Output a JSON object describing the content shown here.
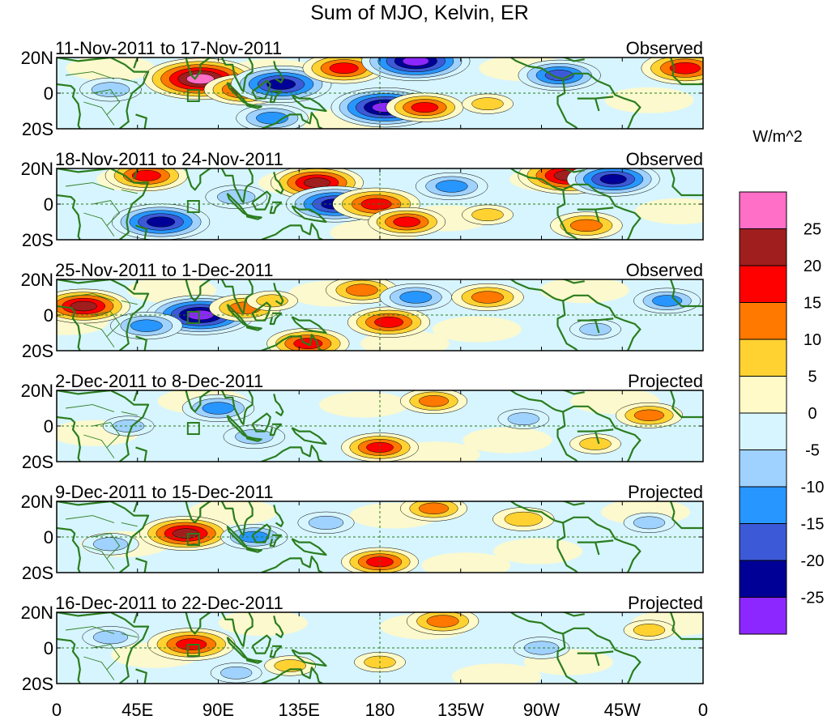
{
  "title": "Sum of MJO, Kelvin, ER",
  "chart_data": {
    "type": "heatmap",
    "title": "Sum of MJO, Kelvin, ER",
    "units": "W/m^2",
    "lat_ticks": [
      "20N",
      "0",
      "20S"
    ],
    "lon_ticks": [
      "0",
      "45E",
      "90E",
      "135E",
      "180",
      "135W",
      "90W",
      "45W",
      "0"
    ],
    "lon_range": [
      0,
      360
    ],
    "lat_range": [
      -20,
      20
    ],
    "colorbar": {
      "labels": [
        "25",
        "20",
        "15",
        "10",
        "5",
        "0",
        "-5",
        "-10",
        "-15",
        "-20",
        "-25"
      ],
      "colors": [
        "#ff6ec7",
        "#a01e1e",
        "#ff0000",
        "#ff7800",
        "#ffd232",
        "#fffac8",
        "#d7f5ff",
        "#a0d2ff",
        "#2896ff",
        "#3c5ad7",
        "#000096",
        "#8c28ff"
      ]
    },
    "panels": [
      {
        "period": "11-Nov-2011 to 17-Nov-2011",
        "status": "Observed",
        "features": [
          {
            "lon": 80,
            "lat": 8,
            "value": 30
          },
          {
            "lon": 105,
            "lat": 2,
            "value": 18
          },
          {
            "lon": 125,
            "lat": 5,
            "value": -25
          },
          {
            "lon": 160,
            "lat": 14,
            "value": 18
          },
          {
            "lon": 200,
            "lat": 18,
            "value": -28
          },
          {
            "lon": 183,
            "lat": -8,
            "value": -28
          },
          {
            "lon": 205,
            "lat": -8,
            "value": 16
          },
          {
            "lon": 280,
            "lat": 10,
            "value": -18
          },
          {
            "lon": 350,
            "lat": 14,
            "value": 20
          },
          {
            "lon": 30,
            "lat": 2,
            "value": -10
          },
          {
            "lon": 120,
            "lat": -14,
            "value": -14
          },
          {
            "lon": 240,
            "lat": -6,
            "value": 6
          }
        ]
      },
      {
        "period": "18-Nov-2011 to 24-Nov-2011",
        "status": "Observed",
        "features": [
          {
            "lon": 50,
            "lat": 16,
            "value": 18
          },
          {
            "lon": 58,
            "lat": -10,
            "value": -24
          },
          {
            "lon": 145,
            "lat": 12,
            "value": 22
          },
          {
            "lon": 155,
            "lat": 0,
            "value": -24
          },
          {
            "lon": 178,
            "lat": 0,
            "value": 20
          },
          {
            "lon": 195,
            "lat": -10,
            "value": 16
          },
          {
            "lon": 220,
            "lat": 10,
            "value": -14
          },
          {
            "lon": 285,
            "lat": 16,
            "value": 25
          },
          {
            "lon": 310,
            "lat": 14,
            "value": -22
          },
          {
            "lon": 295,
            "lat": -12,
            "value": 14
          },
          {
            "lon": 100,
            "lat": 4,
            "value": -10
          },
          {
            "lon": 240,
            "lat": -6,
            "value": 6
          }
        ]
      },
      {
        "period": "25-Nov-2011 to 1-Dec-2011",
        "status": "Observed",
        "features": [
          {
            "lon": 15,
            "lat": 5,
            "value": 22
          },
          {
            "lon": 80,
            "lat": 0,
            "value": -28
          },
          {
            "lon": 105,
            "lat": 4,
            "value": 14
          },
          {
            "lon": 170,
            "lat": 14,
            "value": 14
          },
          {
            "lon": 185,
            "lat": -4,
            "value": 18
          },
          {
            "lon": 140,
            "lat": -16,
            "value": 18
          },
          {
            "lon": 240,
            "lat": 10,
            "value": 14
          },
          {
            "lon": 200,
            "lat": 10,
            "value": -14
          },
          {
            "lon": 340,
            "lat": 8,
            "value": -12
          },
          {
            "lon": 300,
            "lat": -8,
            "value": -6
          },
          {
            "lon": 50,
            "lat": -6,
            "value": -14
          },
          {
            "lon": 120,
            "lat": 8,
            "value": 6
          }
        ]
      },
      {
        "period": "2-Dec-2011 to 8-Dec-2011",
        "status": "Projected",
        "features": [
          {
            "lon": 90,
            "lat": 10,
            "value": -14
          },
          {
            "lon": 110,
            "lat": -6,
            "value": -10
          },
          {
            "lon": 180,
            "lat": -12,
            "value": 16
          },
          {
            "lon": 210,
            "lat": 14,
            "value": 12
          },
          {
            "lon": 330,
            "lat": 6,
            "value": 12
          },
          {
            "lon": 260,
            "lat": 4,
            "value": -6
          },
          {
            "lon": 40,
            "lat": 0,
            "value": -6
          },
          {
            "lon": 300,
            "lat": -10,
            "value": 6
          }
        ]
      },
      {
        "period": "9-Dec-2011 to 15-Dec-2011",
        "status": "Projected",
        "features": [
          {
            "lon": 72,
            "lat": 2,
            "value": 22
          },
          {
            "lon": 110,
            "lat": 0,
            "value": -12
          },
          {
            "lon": 180,
            "lat": -14,
            "value": 16
          },
          {
            "lon": 210,
            "lat": 16,
            "value": 12
          },
          {
            "lon": 260,
            "lat": 10,
            "value": 10
          },
          {
            "lon": 30,
            "lat": -4,
            "value": -8
          },
          {
            "lon": 330,
            "lat": 8,
            "value": -6
          },
          {
            "lon": 150,
            "lat": 8,
            "value": -8
          }
        ]
      },
      {
        "period": "16-Dec-2011 to 22-Dec-2011",
        "status": "Projected",
        "features": [
          {
            "lon": 75,
            "lat": 2,
            "value": 20
          },
          {
            "lon": 215,
            "lat": 15,
            "value": 14
          },
          {
            "lon": 270,
            "lat": 0,
            "value": -8
          },
          {
            "lon": 30,
            "lat": 6,
            "value": -8
          },
          {
            "lon": 130,
            "lat": -10,
            "value": 6
          },
          {
            "lon": 330,
            "lat": 10,
            "value": 6
          },
          {
            "lon": 100,
            "lat": -14,
            "value": -6
          },
          {
            "lon": 180,
            "lat": -8,
            "value": 6
          }
        ]
      }
    ]
  }
}
